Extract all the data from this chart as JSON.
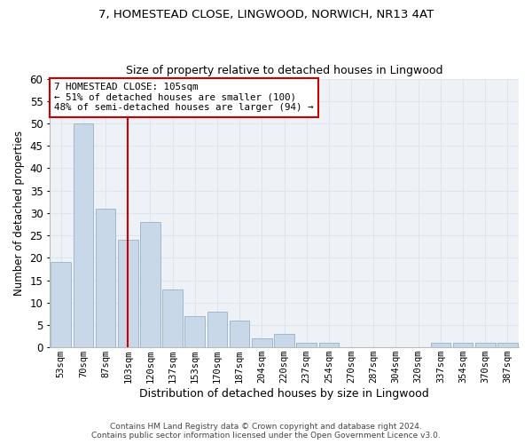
{
  "title1": "7, HOMESTEAD CLOSE, LINGWOOD, NORWICH, NR13 4AT",
  "title2": "Size of property relative to detached houses in Lingwood",
  "xlabel": "Distribution of detached houses by size in Lingwood",
  "ylabel": "Number of detached properties",
  "footnote1": "Contains HM Land Registry data © Crown copyright and database right 2024.",
  "footnote2": "Contains public sector information licensed under the Open Government Licence v3.0.",
  "annotation_line1": "7 HOMESTEAD CLOSE: 105sqm",
  "annotation_line2": "← 51% of detached houses are smaller (100)",
  "annotation_line3": "48% of semi-detached houses are larger (94) →",
  "bar_labels": [
    "53sqm",
    "70sqm",
    "87sqm",
    "103sqm",
    "120sqm",
    "137sqm",
    "153sqm",
    "170sqm",
    "187sqm",
    "204sqm",
    "220sqm",
    "237sqm",
    "254sqm",
    "270sqm",
    "287sqm",
    "304sqm",
    "320sqm",
    "337sqm",
    "354sqm",
    "370sqm",
    "387sqm"
  ],
  "bar_values": [
    19,
    50,
    31,
    24,
    28,
    13,
    7,
    8,
    6,
    2,
    3,
    1,
    1,
    0,
    0,
    0,
    0,
    1,
    1,
    1,
    1
  ],
  "bar_color": "#c8d8e8",
  "bar_edge_color": "#a0b8cc",
  "property_bin_index": 3,
  "red_line_color": "#cc0000",
  "ylim": [
    0,
    60
  ],
  "yticks": [
    0,
    5,
    10,
    15,
    20,
    25,
    30,
    35,
    40,
    45,
    50,
    55,
    60
  ],
  "grid_color": "#dce6f0",
  "bg_color": "#eef2f7"
}
